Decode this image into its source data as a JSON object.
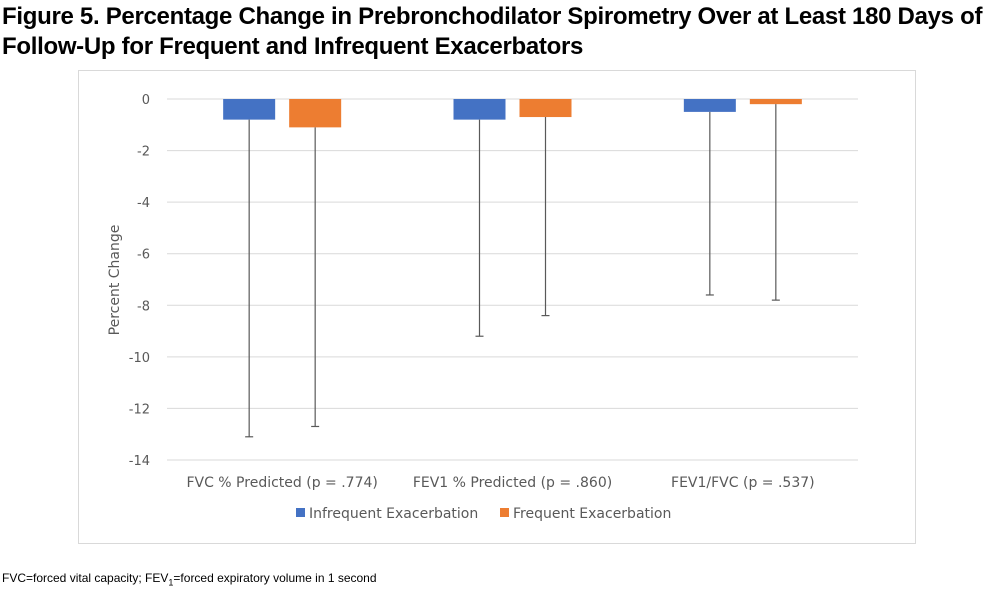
{
  "figure": {
    "title_line1": "Figure 5. Percentage Change in Prebronchodilator Spirometry Over at Least 180 Days of",
    "title_line2": "Follow-Up for Frequent and Infrequent Exacerbators",
    "footnote_part1": "FVC=forced vital capacity; FEV",
    "footnote_sub": "1",
    "footnote_part2": "=forced expiratory volume in 1 second"
  },
  "chart_data": {
    "type": "bar",
    "title": "",
    "xlabel": "",
    "ylabel": "Percent Change",
    "ylim": [
      -14,
      0
    ],
    "yticks": [
      0,
      -2,
      -4,
      -6,
      -8,
      -10,
      -12,
      -14
    ],
    "grid": true,
    "legend_position": "bottom",
    "categories": [
      "FVC % Predicted (p = .774)",
      "FEV1 % Predicted (p = .860)",
      "FEV1/FVC (p = .537)"
    ],
    "series": [
      {
        "name": "Infrequent Exacerbation",
        "color": "#4472c4",
        "values": [
          -0.8,
          -0.8,
          -0.5
        ],
        "error_lower": [
          -13.1,
          -9.2,
          -7.6
        ]
      },
      {
        "name": "Frequent Exacerbation",
        "color": "#ed7d31",
        "values": [
          -1.1,
          -0.7,
          -0.2
        ],
        "error_lower": [
          -12.7,
          -8.4,
          -7.8
        ]
      }
    ]
  }
}
